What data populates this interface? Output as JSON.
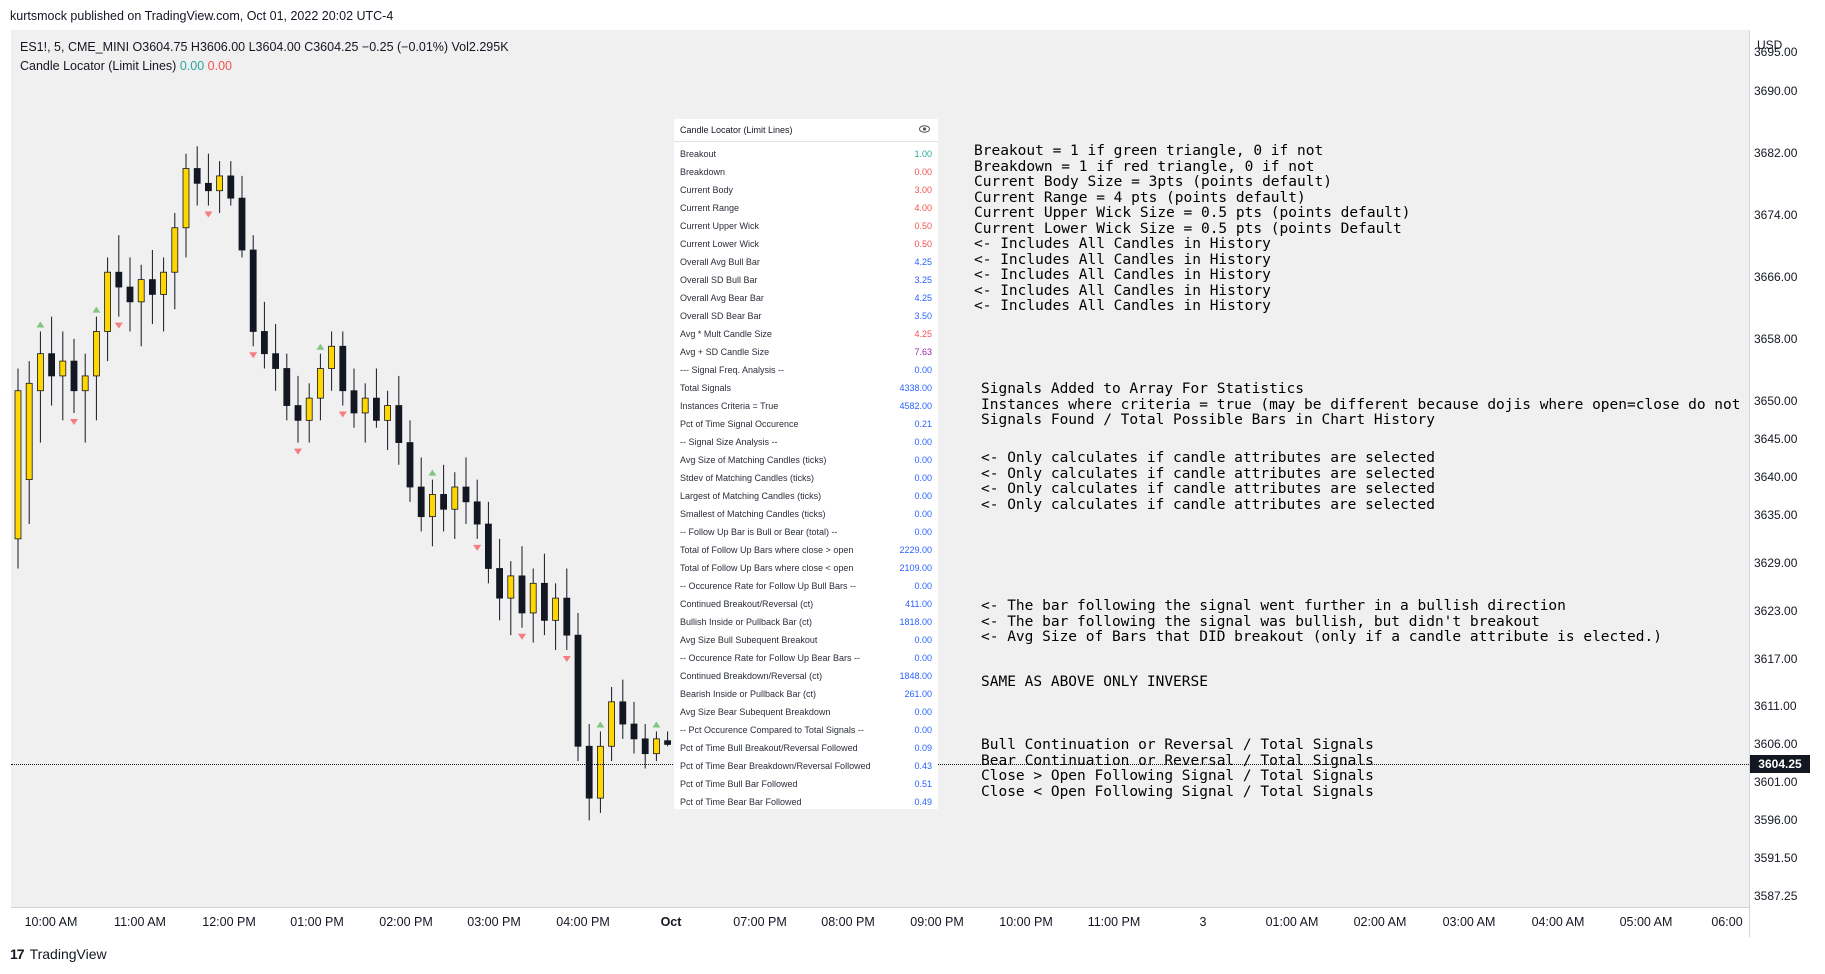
{
  "credit": "kurtsmock published on TradingView.com, Oct 01, 2022 20:02 UTC-4",
  "legend": {
    "symbol_line": "ES1!, 5, CME_MINI  O3604.75  H3606.00  L3604.00  C3604.25  −0.25 (−0.01%)  Vol2.295K",
    "indicator_name": "Candle Locator (Limit Lines)",
    "val1": "0.00",
    "val2": "0.00"
  },
  "colors": {
    "bull": "#ffd600",
    "bear": "#131722",
    "up_triangle": "#81c784",
    "down_triangle": "#f77c80",
    "value_blue": "#2962ff",
    "value_red": "#ef5350",
    "value_green": "#26a69a"
  },
  "table": {
    "title": "Candle Locator (Limit Lines)",
    "eye_icon": "eye-icon",
    "rows": [
      {
        "label": "Breakout",
        "value": "1.00",
        "color": "green"
      },
      {
        "label": "Breakdown",
        "value": "0.00",
        "color": "red"
      },
      {
        "label": "Current Body",
        "value": "3.00",
        "color": "red"
      },
      {
        "label": "Current Range",
        "value": "4.00",
        "color": "red"
      },
      {
        "label": "Current Upper Wick",
        "value": "0.50",
        "color": "red"
      },
      {
        "label": "Current Lower Wick",
        "value": "0.50",
        "color": "red"
      },
      {
        "label": "Overall Avg Bull Bar",
        "value": "4.25",
        "color": "blue"
      },
      {
        "label": "Overall SD Bull Bar",
        "value": "3.25",
        "color": "blue"
      },
      {
        "label": "Overall Avg Bear Bar",
        "value": "4.25",
        "color": "blue"
      },
      {
        "label": "Overall SD Bear Bar",
        "value": "3.50",
        "color": "blue"
      },
      {
        "label": "Avg * Mult Candle Size",
        "value": "4.25",
        "color": "red"
      },
      {
        "label": "Avg + SD Candle Size",
        "value": "7.63",
        "color": "purple"
      },
      {
        "label": "--- Signal Freq. Analysis --",
        "value": "0.00",
        "color": "blue"
      },
      {
        "label": "Total Signals",
        "value": "4338.00",
        "color": "blue"
      },
      {
        "label": "Instances Criteria = True",
        "value": "4582.00",
        "color": "blue"
      },
      {
        "label": "Pct of Time Signal Occurence",
        "value": "0.21",
        "color": "blue"
      },
      {
        "label": "-- Signal Size Analysis --",
        "value": "0.00",
        "color": "blue"
      },
      {
        "label": "Avg Size of Matching Candles (ticks)",
        "value": "0.00",
        "color": "blue"
      },
      {
        "label": "Stdev of Matching Candles (ticks)",
        "value": "0.00",
        "color": "blue"
      },
      {
        "label": "Largest of Matching Candles (ticks)",
        "value": "0.00",
        "color": "blue"
      },
      {
        "label": "Smallest of Matching Candles (ticks)",
        "value": "0.00",
        "color": "blue"
      },
      {
        "label": "-- Follow Up Bar is Bull or Bear (total) --",
        "value": "0.00",
        "color": "blue"
      },
      {
        "label": "Total of Follow Up Bars where close > open",
        "value": "2229.00",
        "color": "blue"
      },
      {
        "label": "Total of Follow Up Bars where close < open",
        "value": "2109.00",
        "color": "blue"
      },
      {
        "label": "-- Occurence Rate for Follow Up Bull Bars --",
        "value": "0.00",
        "color": "blue"
      },
      {
        "label": "Continued Breakout/Reversal (ct)",
        "value": "411.00",
        "color": "blue"
      },
      {
        "label": "Bullish Inside or Pullback Bar (ct)",
        "value": "1818.00",
        "color": "blue"
      },
      {
        "label": "Avg Size Bull Subequent Breakout",
        "value": "0.00",
        "color": "blue"
      },
      {
        "label": "-- Occurence Rate for Follow Up Bear Bars --",
        "value": "0.00",
        "color": "blue"
      },
      {
        "label": "Continued Breakdown/Reversal (ct)",
        "value": "1848.00",
        "color": "blue"
      },
      {
        "label": "Bearish Inside or Pullback Bar (ct)",
        "value": "261.00",
        "color": "blue"
      },
      {
        "label": "Avg Size Bear Subequent Breakdown",
        "value": "0.00",
        "color": "blue"
      },
      {
        "label": "-- Pct Occurence Compared to Total Signals --",
        "value": "0.00",
        "color": "blue"
      },
      {
        "label": "Pct of Time Bull Breakout/Reversal Followed",
        "value": "0.09",
        "color": "blue"
      },
      {
        "label": "Pct of Time Bear Breakdown/Reversal Followed",
        "value": "0.43",
        "color": "blue"
      },
      {
        "label": "Pct of Time Bull Bar Followed",
        "value": "0.51",
        "color": "blue"
      },
      {
        "label": "Pct of Time Bear Bar Followed",
        "value": "0.49",
        "color": "blue"
      }
    ]
  },
  "notes": {
    "block1": "Breakout = 1 if green triangle, 0 if not\nBreakdown = 1 if red triangle, 0 if not\nCurrent Body Size = 3pts (points default)\nCurrent Range = 4 pts (points default)\nCurrent Upper Wick Size = 0.5 pts (points default)\nCurrent Lower Wick Size = 0.5 pts (points Default\n<- Includes All Candles in History\n<- Includes All Candles in History\n<- Includes All Candles in History\n<- Includes All Candles in History\n<- Includes All Candles in History",
    "block2": "Signals Added to Array For Statistics\nInstances where criteria = true (may be different because dojis where open=close do not go in arrays)\nSignals Found / Total Possible Bars in Chart History",
    "block3": "<- Only calculates if candle attributes are selected\n<- Only calculates if candle attributes are selected\n<- Only calculates if candle attributes are selected\n<- Only calculates if candle attributes are selected",
    "block4": "<- The bar following the signal went further in a bullish direction\n<- The bar following the signal was bullish, but didn't breakout\n<- Avg Size of Bars that DID breakout (only if a candle attribute is elected.)",
    "block5": "SAME AS ABOVE ONLY INVERSE",
    "block6": "Bull Continuation or Reversal / Total Signals\nBear Continuation or Reversal / Total Signals\nClose > Open Following Signal / Total Signals\nClose < Open Following Signal / Total Signals"
  },
  "price_axis": {
    "currency": "USD",
    "labels": [
      "3695.00",
      "3690.00",
      "3682.00",
      "3674.00",
      "3666.00",
      "3658.00",
      "3650.00",
      "3645.00",
      "3640.00",
      "3635.00",
      "3629.00",
      "3623.00",
      "3617.00",
      "3611.00",
      "3606.00",
      "3601.00",
      "3596.00",
      "3591.50",
      "3587.25"
    ],
    "current_price": "3604.25"
  },
  "time_axis": {
    "labels": [
      {
        "text": "10:00 AM",
        "bold": false
      },
      {
        "text": "11:00 AM",
        "bold": false
      },
      {
        "text": "12:00 PM",
        "bold": false
      },
      {
        "text": "01:00 PM",
        "bold": false
      },
      {
        "text": "02:00 PM",
        "bold": false
      },
      {
        "text": "03:00 PM",
        "bold": false
      },
      {
        "text": "04:00 PM",
        "bold": false
      },
      {
        "text": "Oct",
        "bold": true
      },
      {
        "text": "07:00 PM",
        "bold": false
      },
      {
        "text": "08:00 PM",
        "bold": false
      },
      {
        "text": "09:00 PM",
        "bold": false
      },
      {
        "text": "10:00 PM",
        "bold": false
      },
      {
        "text": "11:00 PM",
        "bold": false
      },
      {
        "text": "3",
        "bold": false
      },
      {
        "text": "01:00 AM",
        "bold": false
      },
      {
        "text": "02:00 AM",
        "bold": false
      },
      {
        "text": "03:00 AM",
        "bold": false
      },
      {
        "text": "04:00 AM",
        "bold": false
      },
      {
        "text": "05:00 AM",
        "bold": false
      },
      {
        "text": "06:00",
        "bold": false
      }
    ]
  },
  "chart_data": {
    "type": "candlestick",
    "y_range": [
      3585,
      3698
    ],
    "series": [
      {
        "o": 3632,
        "h": 3655,
        "l": 3628,
        "c": 3652
      },
      {
        "o": 3640,
        "h": 3656,
        "l": 3634,
        "c": 3653
      },
      {
        "o": 3652,
        "h": 3660,
        "l": 3645,
        "c": 3657
      },
      {
        "o": 3657,
        "h": 3662,
        "l": 3650,
        "c": 3654
      },
      {
        "o": 3654,
        "h": 3660,
        "l": 3648,
        "c": 3656
      },
      {
        "o": 3656,
        "h": 3659,
        "l": 3649,
        "c": 3652
      },
      {
        "o": 3652,
        "h": 3657,
        "l": 3645,
        "c": 3654
      },
      {
        "o": 3654,
        "h": 3662,
        "l": 3648,
        "c": 3660
      },
      {
        "o": 3660,
        "h": 3670,
        "l": 3656,
        "c": 3668
      },
      {
        "o": 3668,
        "h": 3673,
        "l": 3662,
        "c": 3666
      },
      {
        "o": 3666,
        "h": 3670,
        "l": 3660,
        "c": 3664
      },
      {
        "o": 3664,
        "h": 3669,
        "l": 3658,
        "c": 3667
      },
      {
        "o": 3667,
        "h": 3671,
        "l": 3661,
        "c": 3665
      },
      {
        "o": 3665,
        "h": 3670,
        "l": 3660,
        "c": 3668
      },
      {
        "o": 3668,
        "h": 3676,
        "l": 3663,
        "c": 3674
      },
      {
        "o": 3674,
        "h": 3684,
        "l": 3670,
        "c": 3682
      },
      {
        "o": 3682,
        "h": 3685,
        "l": 3677,
        "c": 3680
      },
      {
        "o": 3680,
        "h": 3684,
        "l": 3677,
        "c": 3679
      },
      {
        "o": 3679,
        "h": 3683,
        "l": 3676,
        "c": 3681
      },
      {
        "o": 3681,
        "h": 3683,
        "l": 3677,
        "c": 3678
      },
      {
        "o": 3678,
        "h": 3681,
        "l": 3670,
        "c": 3671
      },
      {
        "o": 3671,
        "h": 3673,
        "l": 3658,
        "c": 3660
      },
      {
        "o": 3660,
        "h": 3664,
        "l": 3655,
        "c": 3657
      },
      {
        "o": 3657,
        "h": 3661,
        "l": 3652,
        "c": 3655
      },
      {
        "o": 3655,
        "h": 3657,
        "l": 3648,
        "c": 3650
      },
      {
        "o": 3650,
        "h": 3654,
        "l": 3645,
        "c": 3648
      },
      {
        "o": 3648,
        "h": 3653,
        "l": 3645,
        "c": 3651
      },
      {
        "o": 3651,
        "h": 3657,
        "l": 3648,
        "c": 3655
      },
      {
        "o": 3655,
        "h": 3660,
        "l": 3652,
        "c": 3658
      },
      {
        "o": 3658,
        "h": 3660,
        "l": 3650,
        "c": 3652
      },
      {
        "o": 3652,
        "h": 3655,
        "l": 3647,
        "c": 3649
      },
      {
        "o": 3649,
        "h": 3653,
        "l": 3645,
        "c": 3651
      },
      {
        "o": 3651,
        "h": 3655,
        "l": 3647,
        "c": 3648
      },
      {
        "o": 3648,
        "h": 3652,
        "l": 3644,
        "c": 3650
      },
      {
        "o": 3650,
        "h": 3654,
        "l": 3642,
        "c": 3645
      },
      {
        "o": 3645,
        "h": 3648,
        "l": 3637,
        "c": 3639
      },
      {
        "o": 3639,
        "h": 3643,
        "l": 3633,
        "c": 3635
      },
      {
        "o": 3635,
        "h": 3640,
        "l": 3631,
        "c": 3638
      },
      {
        "o": 3638,
        "h": 3642,
        "l": 3633,
        "c": 3636
      },
      {
        "o": 3636,
        "h": 3641,
        "l": 3632,
        "c": 3639
      },
      {
        "o": 3639,
        "h": 3643,
        "l": 3634,
        "c": 3637
      },
      {
        "o": 3637,
        "h": 3640,
        "l": 3632,
        "c": 3634
      },
      {
        "o": 3634,
        "h": 3637,
        "l": 3626,
        "c": 3628
      },
      {
        "o": 3628,
        "h": 3632,
        "l": 3621,
        "c": 3624
      },
      {
        "o": 3624,
        "h": 3629,
        "l": 3619,
        "c": 3627
      },
      {
        "o": 3627,
        "h": 3631,
        "l": 3620,
        "c": 3622
      },
      {
        "o": 3622,
        "h": 3628,
        "l": 3618,
        "c": 3626
      },
      {
        "o": 3626,
        "h": 3630,
        "l": 3619,
        "c": 3621
      },
      {
        "o": 3621,
        "h": 3626,
        "l": 3617,
        "c": 3624
      },
      {
        "o": 3624,
        "h": 3628,
        "l": 3617,
        "c": 3619
      },
      {
        "o": 3619,
        "h": 3622,
        "l": 3602,
        "c": 3604
      },
      {
        "o": 3604,
        "h": 3607,
        "l": 3594,
        "c": 3597
      },
      {
        "o": 3597,
        "h": 3606,
        "l": 3595,
        "c": 3604
      },
      {
        "o": 3604,
        "h": 3612,
        "l": 3602,
        "c": 3610
      },
      {
        "o": 3610,
        "h": 3613,
        "l": 3605,
        "c": 3607
      },
      {
        "o": 3607,
        "h": 3610,
        "l": 3603,
        "c": 3605
      },
      {
        "o": 3605,
        "h": 3607,
        "l": 3601,
        "c": 3603
      },
      {
        "o": 3603,
        "h": 3606,
        "l": 3602,
        "c": 3605
      },
      {
        "o": 3604.75,
        "h": 3606,
        "l": 3604,
        "c": 3604.25
      }
    ]
  }
}
